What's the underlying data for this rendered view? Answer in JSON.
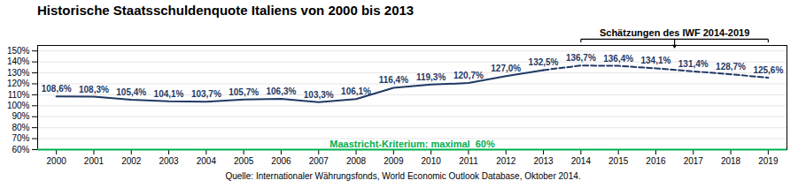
{
  "chart_data": {
    "type": "line",
    "title": "Historische Staatsschuldenquote Italiens von 2000 bis 2013",
    "subtitle": "Quelle: Internationaler Währungsfonds, World Economic Outlook Database, Oktober 2014.",
    "xlim": [
      1999.5,
      2019.5
    ],
    "xticks": [
      2000,
      2001,
      2002,
      2003,
      2004,
      2005,
      2006,
      2007,
      2008,
      2009,
      2010,
      2011,
      2012,
      2013,
      2014,
      2015,
      2016,
      2017,
      2018,
      2019
    ],
    "ylim": [
      60,
      155
    ],
    "yticks": [
      {
        "value": 60,
        "label": "60%"
      },
      {
        "value": 70,
        "label": "70%"
      },
      {
        "value": 80,
        "label": "80%"
      },
      {
        "value": 90,
        "label": "90%"
      },
      {
        "value": 100,
        "label": "100%"
      },
      {
        "value": 110,
        "label": "110%"
      },
      {
        "value": 120,
        "label": "120%"
      },
      {
        "value": 130,
        "label": "130%"
      },
      {
        "value": 140,
        "label": "140%"
      },
      {
        "value": 150,
        "label": "150%"
      }
    ],
    "grid": true,
    "data_labels": true,
    "series": [
      {
        "x": [
          2000,
          2001,
          2002,
          2003,
          2004,
          2005,
          2006,
          2007,
          2008,
          2009,
          2010,
          2011,
          2012,
          2013
        ],
        "values": [
          108.6,
          108.3,
          105.4,
          104.1,
          103.7,
          105.7,
          106.3,
          103.3,
          106.1,
          116.4,
          119.3,
          120.7,
          127.0,
          132.5
        ],
        "value_labels": [
          "108,6%",
          "108,3%",
          "105,4%",
          "104,1%",
          "103,7%",
          "105,7%",
          "106,3%",
          "103,3%",
          "106,1%",
          "116,4%",
          "119,3%",
          "120,7%",
          "127,0%",
          "132,5%"
        ],
        "color": "#1F3864",
        "line_style": "solid"
      },
      {
        "x": [
          2013,
          2014,
          2015,
          2016,
          2017,
          2018,
          2019
        ],
        "values": [
          132.5,
          136.7,
          136.4,
          134.1,
          131.4,
          128.7,
          125.6
        ],
        "value_labels": [
          null,
          "136,7%",
          "136,4%",
          "134,1%",
          "131,4%",
          "128,7%",
          "125,6%"
        ],
        "color": "#1F3864",
        "line_style": "dashed"
      }
    ],
    "annotations": [
      {
        "type": "hline",
        "y": 60,
        "text": "Maastricht-Kriterium: maximal  60%",
        "color": "#00B050"
      },
      {
        "type": "bracket",
        "x": [
          2014,
          2019
        ],
        "text": "Schätzungen des IWF 2014-2019"
      }
    ]
  }
}
